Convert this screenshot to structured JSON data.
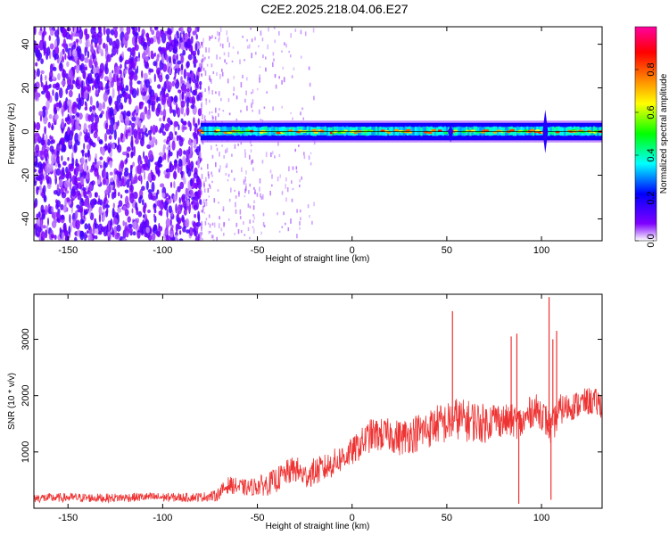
{
  "title": "C2E2.2025.218.04.06.E27",
  "chart_data": [
    {
      "type": "heatmap",
      "xlabel": "Height of straight line (km)",
      "ylabel": "Frequency (Hz)",
      "xlim": [
        -168,
        132
      ],
      "ylim": [
        -50,
        48
      ],
      "xticks": [
        -150,
        -100,
        -50,
        0,
        50,
        100
      ],
      "yticks": [
        -40,
        -20,
        0,
        20,
        40
      ],
      "colorbar": {
        "label": "Normalized spectral amplitude",
        "range": [
          0,
          1
        ],
        "ticks": [
          "0.0",
          "0.2",
          "0.4",
          "0.6",
          "0.8"
        ],
        "colormap": [
          "#ffffff",
          "#7f00ff",
          "#0000ff",
          "#00ffff",
          "#00ff00",
          "#ffff00",
          "#ff7f00",
          "#ff0000",
          "#ff00a0"
        ]
      },
      "regions": [
        {
          "x": [
            -168,
            -80
          ],
          "freq": [
            -50,
            48
          ],
          "amplitude": 0.12,
          "pattern": "broadband speckle"
        },
        {
          "x": [
            -80,
            -20
          ],
          "freq": [
            -50,
            48
          ],
          "amplitude": 0.04,
          "pattern": "sparse speckle"
        },
        {
          "x": [
            -80,
            132
          ],
          "freq": [
            -4,
            4
          ],
          "center_freq": 0,
          "amplitude": [
            0.4,
            0.9
          ],
          "pattern": "narrow band"
        }
      ],
      "band_features": [
        {
          "x": 52,
          "freq": [
            -5,
            3
          ]
        },
        {
          "x": 102,
          "freq": [
            -10,
            10
          ]
        }
      ]
    },
    {
      "type": "line",
      "xlabel": "Height of straight line (km)",
      "ylabel": "SNR (10 * v/v)",
      "xlim": [
        -168,
        132
      ],
      "ylim": [
        0,
        3800
      ],
      "xticks": [
        -150,
        -100,
        -50,
        0,
        50,
        100
      ],
      "yticks": [
        1000,
        2000,
        3000
      ],
      "series": [
        {
          "color": "#ee3333",
          "x": [
            -168,
            -150,
            -130,
            -110,
            -90,
            -80,
            -72,
            -65,
            -60,
            -55,
            -50,
            -45,
            -40,
            -35,
            -30,
            -25,
            -20,
            -15,
            -10,
            -5,
            0,
            5,
            10,
            15,
            20,
            25,
            30,
            35,
            40,
            45,
            50,
            55,
            60,
            65,
            70,
            75,
            80,
            85,
            90,
            95,
            100,
            105,
            110,
            115,
            120,
            125,
            132
          ],
          "y": [
            180,
            190,
            180,
            200,
            190,
            200,
            220,
            420,
            380,
            360,
            400,
            420,
            500,
            620,
            700,
            560,
            650,
            700,
            800,
            900,
            1000,
            1150,
            1300,
            1300,
            1300,
            1250,
            1300,
            1350,
            1400,
            1500,
            1500,
            1600,
            1550,
            1550,
            1500,
            1600,
            1550,
            1550,
            1500,
            1750,
            1700,
            1400,
            1750,
            1800,
            1850,
            1900,
            1850
          ],
          "noise_band": [
            160,
            160,
            160,
            160,
            160,
            160,
            200,
            300,
            300,
            300,
            350,
            400,
            450,
            450,
            500,
            450,
            500,
            500,
            500,
            500,
            500,
            550,
            600,
            600,
            600,
            650,
            650,
            700,
            700,
            700,
            750,
            750,
            750,
            750,
            700,
            650,
            600,
            600,
            600,
            600,
            600,
            600,
            550,
            500,
            500,
            500,
            500
          ]
        }
      ],
      "spikes": [
        {
          "x": 53,
          "y": 3500
        },
        {
          "x": 84,
          "y": 3050
        },
        {
          "x": 87,
          "y": 3100
        },
        {
          "x": 88,
          "y": 80
        },
        {
          "x": 104,
          "y": 3750
        },
        {
          "x": 105,
          "y": 150
        },
        {
          "x": 108,
          "y": 3150
        },
        {
          "x": 106,
          "y": 3000
        }
      ]
    }
  ]
}
